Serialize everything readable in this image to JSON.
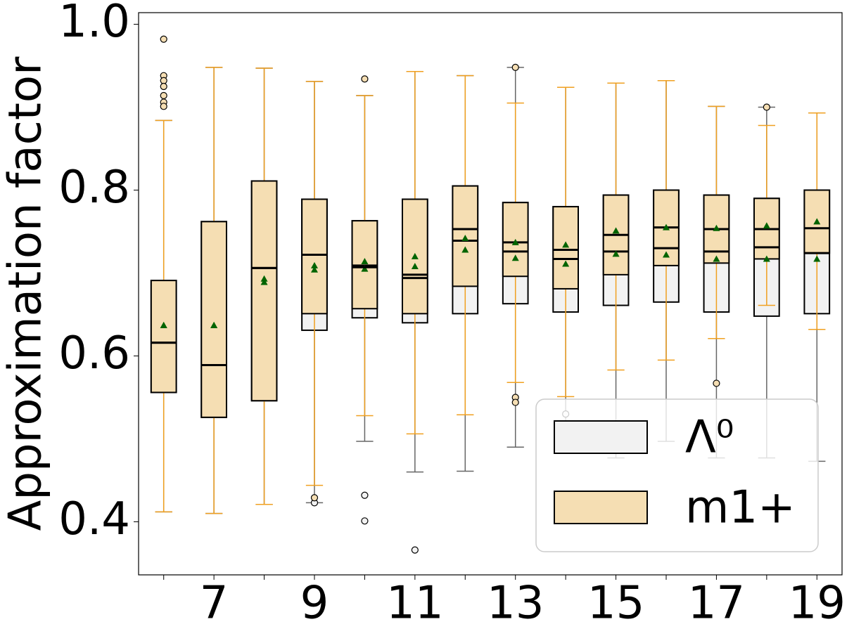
{
  "chart_data": {
    "type": "box",
    "ylabel": "Approximation factor",
    "categories": [
      null,
      "7",
      null,
      "9",
      null,
      "11",
      null,
      "13",
      null,
      "15",
      null,
      "17",
      null,
      "19"
    ],
    "ylim": [
      0.336,
      1.014
    ],
    "yticks": [
      0.4,
      0.6,
      0.8,
      {
        "value": 1.0,
        "label": "1.0"
      }
    ],
    "legend": "lower right",
    "mean_color": "#006400",
    "series": [
      {
        "name": "Λ⁰",
        "color": "#f2f2f2",
        "whisker_color": "#666666",
        "whislo": [
          0.412,
          0.41,
          0.421,
          0.423,
          0.497,
          0.46,
          0.461,
          0.49,
          0.5,
          0.477,
          0.497,
          0.477,
          0.477,
          0.473
        ],
        "q1": [
          0.556,
          0.526,
          0.546,
          0.631,
          0.646,
          0.64,
          0.651,
          0.663,
          0.653,
          0.661,
          0.665,
          0.653,
          0.648,
          0.651
        ],
        "med": [
          0.616,
          0.589,
          0.706,
          0.722,
          0.709,
          0.698,
          0.739,
          0.726,
          0.717,
          0.726,
          0.73,
          0.726,
          0.731,
          0.724
        ],
        "q3": [
          0.691,
          0.762,
          0.811,
          0.789,
          0.763,
          0.789,
          0.805,
          0.785,
          0.78,
          0.794,
          0.8,
          0.794,
          0.79,
          0.8
        ],
        "whishi": [
          0.884,
          0.948,
          0.947,
          0.931,
          0.914,
          0.943,
          0.938,
          0.948,
          0.924,
          0.929,
          0.932,
          0.901,
          0.9,
          0.893
        ],
        "mean": [
          0.637,
          0.637,
          0.693,
          0.704,
          0.705,
          0.708,
          0.728,
          0.718,
          0.711,
          0.723,
          0.722,
          0.717,
          0.717,
          0.717
        ],
        "fliers": [
          [],
          [],
          [],
          [
            0.423
          ],
          [
            0.432,
            0.401
          ],
          [
            0.366
          ],
          [],
          [],
          [
            0.53
          ],
          [],
          [],
          [],
          [],
          []
        ]
      },
      {
        "name": "m1+",
        "color": "#f5deb3",
        "whisker_color": "#f0a020",
        "whislo": [
          0.412,
          0.41,
          0.421,
          0.444,
          0.528,
          0.506,
          0.529,
          0.568,
          0.551,
          0.583,
          0.595,
          0.621,
          0.661,
          0.632
        ],
        "q1": [
          0.556,
          0.526,
          0.546,
          0.651,
          0.657,
          0.651,
          0.684,
          0.696,
          0.681,
          0.698,
          0.709,
          0.712,
          0.717,
          0.724
        ],
        "med": [
          0.616,
          0.589,
          0.706,
          0.722,
          0.707,
          0.694,
          0.753,
          0.737,
          0.728,
          0.746,
          0.755,
          0.753,
          0.753,
          0.754
        ],
        "q3": [
          0.691,
          0.762,
          0.811,
          0.789,
          0.763,
          0.789,
          0.805,
          0.785,
          0.78,
          0.794,
          0.8,
          0.794,
          0.79,
          0.8
        ],
        "whishi": [
          0.884,
          0.948,
          0.947,
          0.931,
          0.914,
          0.943,
          0.938,
          0.905,
          0.924,
          0.929,
          0.932,
          0.901,
          0.878,
          0.893
        ],
        "mean": [
          0.637,
          0.637,
          0.689,
          0.709,
          0.714,
          0.72,
          0.742,
          0.737,
          0.734,
          0.751,
          0.755,
          0.754,
          0.757,
          0.762
        ],
        "fliers": [
          [
            0.982,
            0.938,
            0.932,
            0.925,
            0.914,
            0.906,
            0.901
          ],
          [],
          [],
          [
            0.429
          ],
          [
            0.934
          ],
          [],
          [],
          [
            0.55,
            0.544,
            0.948
          ],
          [],
          [],
          [],
          [
            0.567
          ],
          [
            0.9
          ],
          []
        ]
      }
    ]
  }
}
